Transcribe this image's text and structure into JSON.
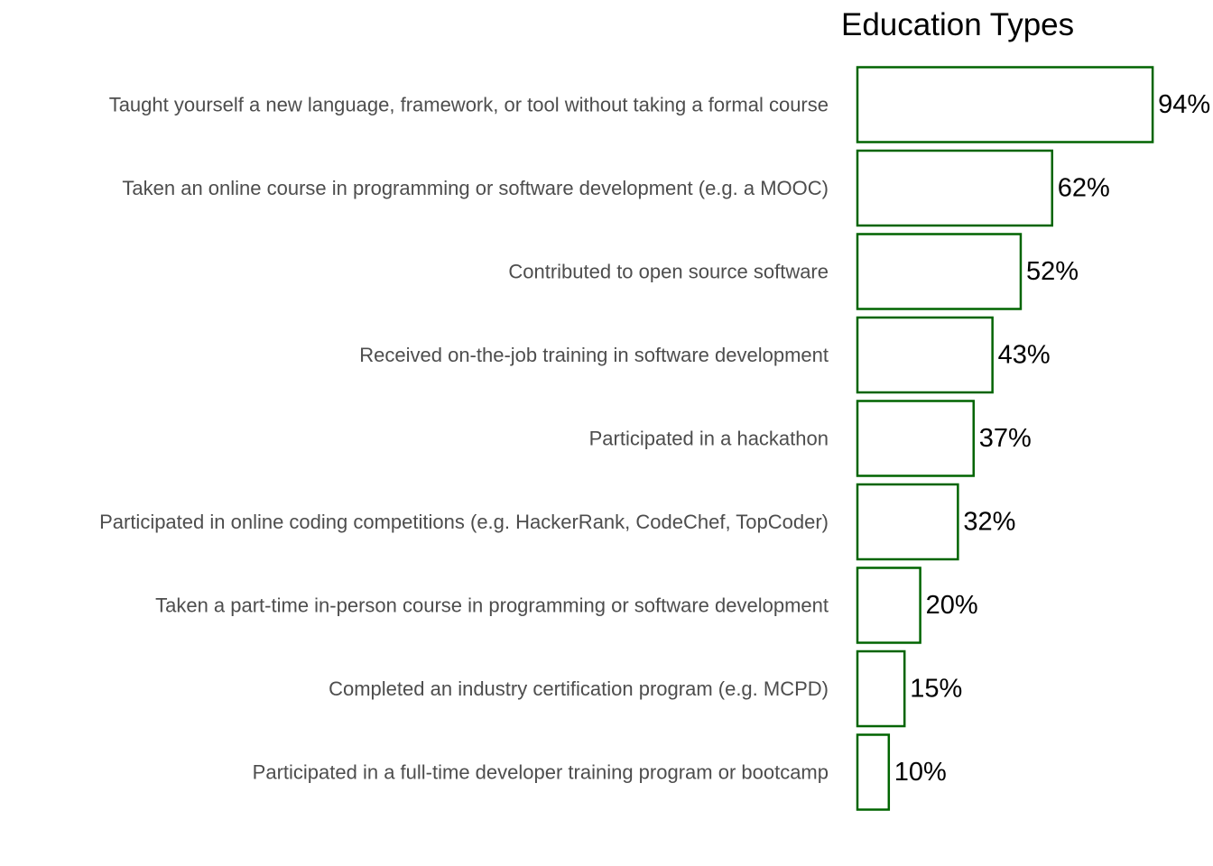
{
  "chart_data": {
    "type": "bar",
    "orientation": "horizontal",
    "title": "Education Types",
    "xlabel": "",
    "ylabel": "",
    "xlim": [
      0,
      100
    ],
    "grid": false,
    "legend": "none",
    "bar_fill": "#ffffff",
    "bar_stroke": "#006400",
    "value_suffix": "%",
    "categories": [
      "Taught yourself a new language, framework, or tool without taking a formal course",
      "Taken an online course in programming or software development (e.g. a MOOC)",
      "Contributed to open source software",
      "Received on-the-job training in software development",
      "Participated in a hackathon",
      "Participated in online coding competitions (e.g. HackerRank, CodeChef, TopCoder)",
      "Taken a part-time in-person course in programming or software development",
      "Completed an industry certification program (e.g. MCPD)",
      "Participated in a full-time developer training program or bootcamp"
    ],
    "values": [
      94,
      62,
      52,
      43,
      37,
      32,
      20,
      15,
      10
    ]
  }
}
